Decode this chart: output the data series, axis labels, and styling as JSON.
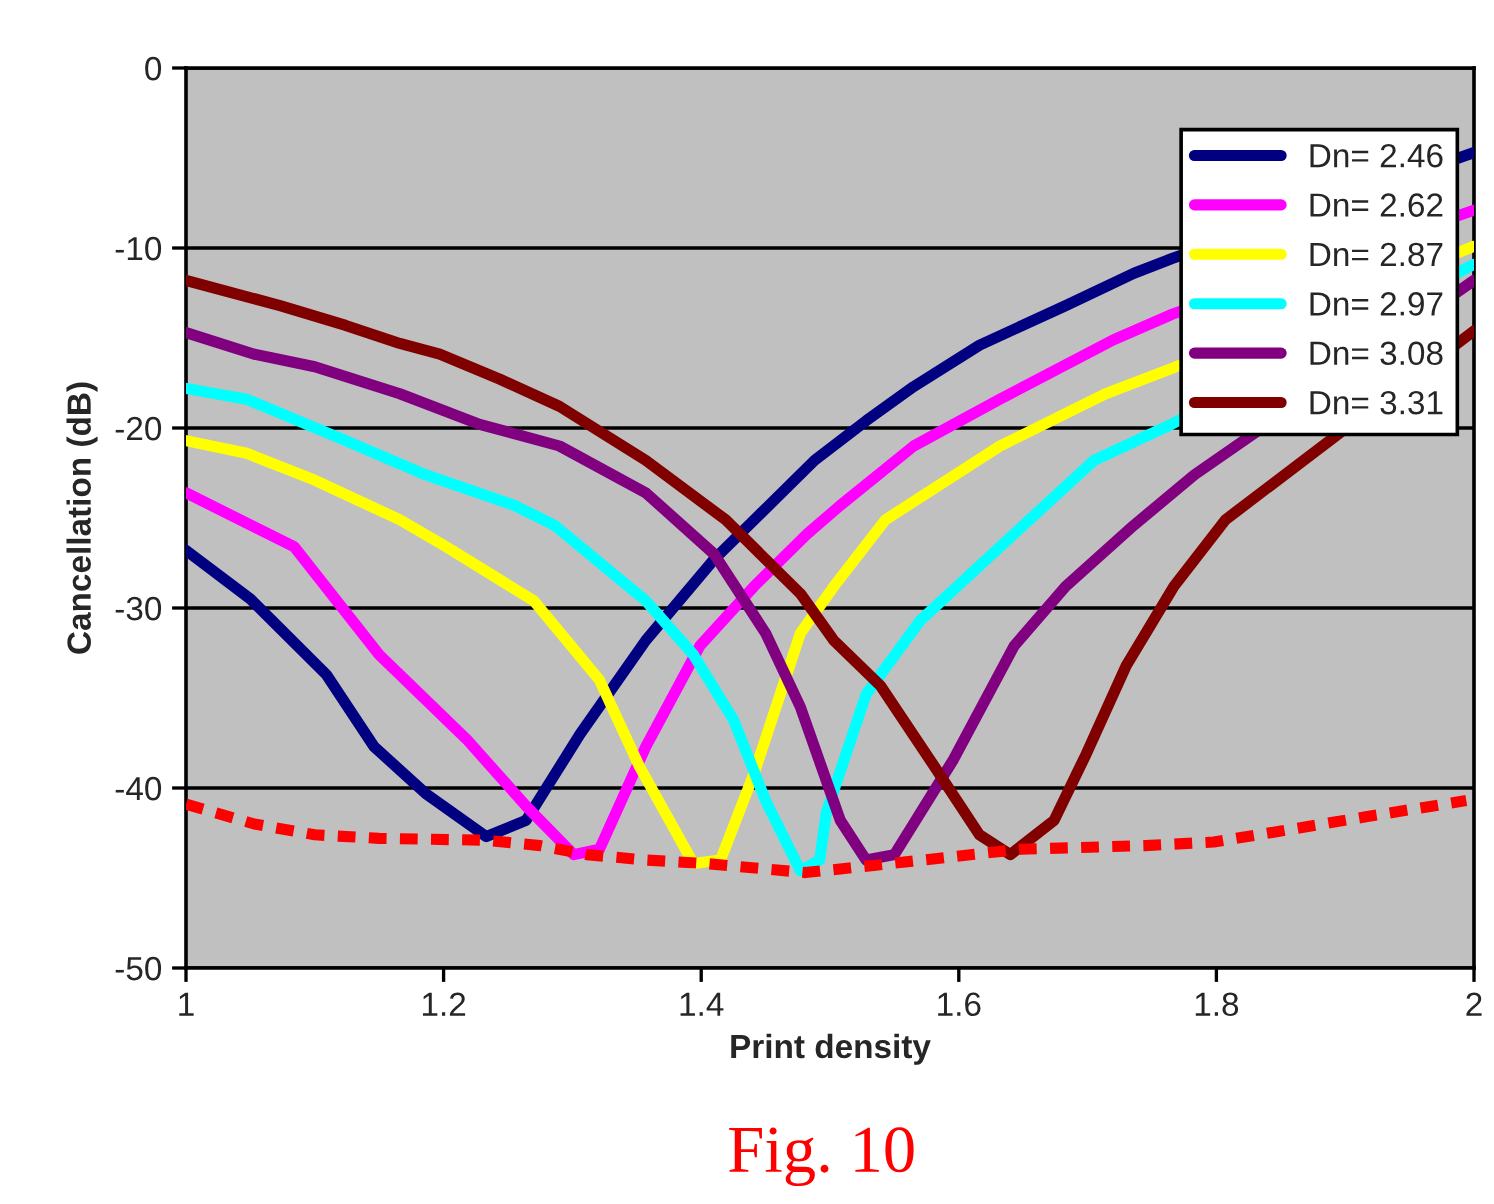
{
  "chart_data": {
    "type": "line",
    "xlabel": "Print density",
    "ylabel": "Cancellation (dB)",
    "xlim": [
      1,
      2
    ],
    "xticks": [
      1,
      1.2,
      1.4,
      1.6,
      1.8,
      2
    ],
    "ylim": [
      -50,
      0
    ],
    "yticks": [
      -50,
      -40,
      -30,
      -20,
      -10,
      0
    ],
    "grid": "y",
    "legend": "top right",
    "marker": "none",
    "line_style": "solid",
    "annotations": [
      "Fig. 10"
    ],
    "series": [
      {
        "name": "Dn= 2.46",
        "color": "#000080",
        "x": [
          1.0,
          1.05,
          1.109,
          1.146,
          1.186,
          1.233,
          1.264,
          1.306,
          1.357,
          1.41,
          1.488,
          1.528,
          1.565,
          1.616,
          1.683,
          1.736,
          1.765,
          2.0
        ],
        "values": [
          -26.8,
          -29.5,
          -33.7,
          -37.7,
          -40.3,
          -42.7,
          -41.8,
          -37,
          -31.8,
          -27.3,
          -21.8,
          -19.6,
          -17.7,
          -15.4,
          -13.2,
          -11.4,
          -10.6,
          -4.7
        ]
      },
      {
        "name": "Dn= 2.62",
        "color": "#ff00ff",
        "x": [
          1.0,
          1.084,
          1.15,
          1.218,
          1.264,
          1.301,
          1.321,
          1.357,
          1.399,
          1.441,
          1.482,
          1.508,
          1.565,
          1.632,
          1.72,
          1.765,
          2.0
        ],
        "values": [
          -23.6,
          -26.6,
          -32.6,
          -37.3,
          -41,
          -43.7,
          -43.4,
          -37.7,
          -32.1,
          -28.8,
          -25.9,
          -24.3,
          -21,
          -18.4,
          -15.1,
          -13.7,
          -7.9
        ]
      },
      {
        "name": "Dn= 2.87",
        "color": "#ffff00",
        "x": [
          1.0,
          1.047,
          1.1,
          1.166,
          1.202,
          1.27,
          1.321,
          1.352,
          1.394,
          1.415,
          1.441,
          1.477,
          1.503,
          1.543,
          1.632,
          1.714,
          1.765,
          2.0
        ],
        "values": [
          -20.7,
          -21.4,
          -22.9,
          -25.1,
          -26.6,
          -29.6,
          -34,
          -38.8,
          -44.2,
          -44,
          -39.2,
          -31.4,
          -28.8,
          -25.1,
          -21,
          -18.1,
          -16.7,
          -9.9
        ]
      },
      {
        "name": "Dn= 2.97",
        "color": "#00ffff",
        "x": [
          1.0,
          1.047,
          1.124,
          1.186,
          1.255,
          1.286,
          1.357,
          1.394,
          1.425,
          1.45,
          1.477,
          1.492,
          1.497,
          1.528,
          1.57,
          1.632,
          1.705,
          1.765,
          2.0
        ],
        "values": [
          -17.8,
          -18.4,
          -20.7,
          -22.6,
          -24.3,
          -25.4,
          -29.6,
          -32.6,
          -36.2,
          -40.7,
          -44.6,
          -44,
          -41.4,
          -34.8,
          -30.7,
          -26.6,
          -21.8,
          -19.8,
          -10.9
        ]
      },
      {
        "name": "Dn= 3.08",
        "color": "#800080",
        "x": [
          1.0,
          1.053,
          1.1,
          1.166,
          1.228,
          1.29,
          1.357,
          1.41,
          1.45,
          1.477,
          1.508,
          1.528,
          1.55,
          1.596,
          1.643,
          1.683,
          1.736,
          1.783,
          2.0
        ],
        "values": [
          -14.7,
          -15.9,
          -16.6,
          -18.1,
          -19.8,
          -21,
          -23.6,
          -27,
          -31.4,
          -35.5,
          -41.8,
          -44,
          -43.7,
          -38.4,
          -32.1,
          -28.8,
          -25.4,
          -22.6,
          -11.8
        ]
      },
      {
        "name": "Dn= 3.31",
        "color": "#800000",
        "x": [
          1.0,
          1.073,
          1.124,
          1.166,
          1.197,
          1.244,
          1.29,
          1.357,
          1.419,
          1.477,
          1.503,
          1.539,
          1.581,
          1.616,
          1.64,
          1.674,
          1.699,
          1.73,
          1.767,
          1.807,
          2.0
        ],
        "values": [
          -11.8,
          -13.2,
          -14.3,
          -15.3,
          -15.9,
          -17.3,
          -18.8,
          -21.8,
          -25.1,
          -29.2,
          -31.8,
          -34.3,
          -38.8,
          -42.6,
          -43.7,
          -41.8,
          -38.1,
          -33.2,
          -28.8,
          -25.1,
          -14.6
        ]
      },
      {
        "color": "#ff0000",
        "line_style": "dashed",
        "x": [
          1.0,
          1.053,
          1.1,
          1.15,
          1.233,
          1.275,
          1.311,
          1.357,
          1.404,
          1.481,
          1.534,
          1.585,
          1.648,
          1.745,
          1.798,
          1.849,
          1.916,
          1.994
        ],
        "values": [
          -40.9,
          -42,
          -42.6,
          -42.8,
          -42.9,
          -43.2,
          -43.7,
          -44,
          -44.2,
          -44.7,
          -44.3,
          -43.9,
          -43.4,
          -43.2,
          -43,
          -42.4,
          -41.6,
          -40.7
        ]
      }
    ]
  }
}
